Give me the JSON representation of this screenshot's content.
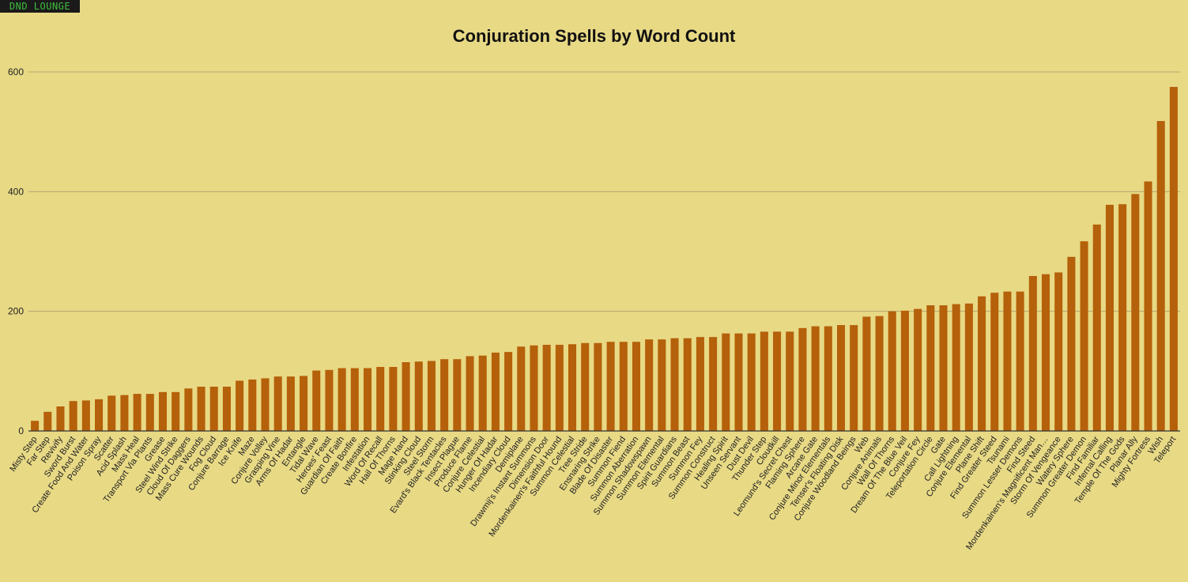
{
  "brand": {
    "logo_text": "DND LOUNGE"
  },
  "colors": {
    "background": "#e8d985",
    "bar": "#b5600a",
    "grid": "#b3a670",
    "axis": "#333333"
  },
  "chart_data": {
    "type": "bar",
    "title": "Conjuration Spells by Word Count",
    "xlabel": "",
    "ylabel": "",
    "ylim": [
      0,
      600
    ],
    "yticks": [
      0,
      200,
      400,
      600
    ],
    "grid": true,
    "categories": [
      "Misty Step",
      "Far Step",
      "Revivify",
      "Sword Burst",
      "Create Food And Water",
      "Poison Spray",
      "Scatter",
      "Acid Splash",
      "Mass Heal",
      "Transport Via Plants",
      "Grease",
      "Steel Wind Strike",
      "Cloud Of Daggers",
      "Mass Cure Wounds",
      "Fog Cloud",
      "Conjure Barrage",
      "Ice Knife",
      "Maze",
      "Conjure Volley",
      "Grasping Vine",
      "Arms Of Hadar",
      "Entangle",
      "Tidal Wave",
      "Heroes' Feast",
      "Guardian Of Faith",
      "Create Bonfire",
      "Infestation",
      "Word Of Recall",
      "Hail Of Thorns",
      "Mage Hand",
      "Stinking Cloud",
      "Steel Storm",
      "Evard's Black Tentacles",
      "Insect Plague",
      "Produce Flame",
      "Conjure Celestial",
      "Hunger Of Hadar",
      "Incendiary Cloud",
      "Demiplane",
      "Drawmij's Instant Summons",
      "Dimension Door",
      "Mordenkainen's Faithful Hound",
      "Summon Celestial",
      "Tree Stride",
      "Ensnaring Strike",
      "Blade Of Disaster",
      "Summon Fiend",
      "Summon Aberration",
      "Summon Shadowspawn",
      "Summon Elemental",
      "Spirit Guardians",
      "Summon Beast",
      "Summon Fey",
      "Summon Construct",
      "Healing Spirit",
      "Unseen Servant",
      "Dust Devil",
      "Thunder Step",
      "Cloudkill",
      "Leomund's Secret Chest",
      "Flaming Sphere",
      "Arcane Gate",
      "Conjure Minor Elementals",
      "Tenser's Floating Disk",
      "Conjure Woodland Beings",
      "Web",
      "Conjure Animals",
      "Wall Of Thorns",
      "Dream Of The Blue Veil",
      "Conjure Fey",
      "Teleportation Circle",
      "Gate",
      "Call Lightning",
      "Conjure Elemental",
      "Plane Shift",
      "Find Greater Steed",
      "Tsunami",
      "Summon Lesser Demons",
      "Find Steed",
      "Mordenkainen's Magnificent Man…",
      "Storm Of Vengeance",
      "Watery Sphere",
      "Summon Greater Demon",
      "Find Familiar",
      "Infernal Calling",
      "Temple Of The Gods",
      "Planar Ally",
      "Mighty Fortress",
      "Wish",
      "Teleport"
    ],
    "values": [
      17,
      32,
      41,
      50,
      51,
      53,
      59,
      60,
      62,
      62,
      65,
      65,
      71,
      74,
      74,
      74,
      84,
      86,
      88,
      91,
      91,
      92,
      101,
      102,
      105,
      105,
      105,
      107,
      107,
      115,
      116,
      117,
      120,
      120,
      125,
      126,
      131,
      132,
      141,
      143,
      144,
      144,
      145,
      147,
      147,
      149,
      149,
      149,
      153,
      153,
      155,
      155,
      157,
      157,
      163,
      163,
      163,
      166,
      166,
      166,
      172,
      175,
      175,
      177,
      177,
      191,
      192,
      200,
      201,
      204,
      210,
      210,
      212,
      213,
      225,
      231,
      233,
      233,
      259,
      262,
      265,
      291,
      317,
      345,
      378,
      379,
      396,
      417,
      518,
      575
    ]
  }
}
